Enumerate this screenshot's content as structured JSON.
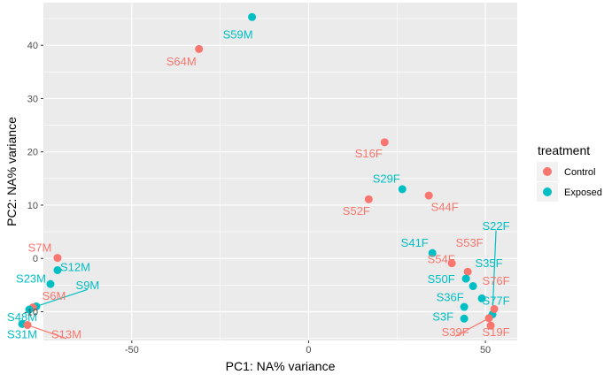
{
  "colors": {
    "Control": "#F8766D",
    "Exposed": "#00BFC4",
    "panel": "#EBEBEB",
    "grid": "#FFFFFF"
  },
  "chart_data": {
    "type": "scatter",
    "xlabel": "PC1: NA% variance",
    "ylabel": "PC2: NA% variance",
    "xlim": [
      -75,
      59
    ],
    "ylim": [
      -15.4,
      48
    ],
    "xticks": [
      -50,
      0,
      50
    ],
    "yticks": [
      -10,
      0,
      10,
      20,
      30,
      40
    ],
    "grid": true,
    "legend": {
      "title": "treatment",
      "position": "right",
      "entries": [
        "Control",
        "Exposed"
      ]
    },
    "points": [
      {
        "label": "S59M",
        "group": "Exposed",
        "x": -16,
        "y": 45.3,
        "lx": -20,
        "ly": 42.0
      },
      {
        "label": "S64M",
        "group": "Control",
        "x": -31,
        "y": 39.3,
        "lx": -36,
        "ly": 37.0
      },
      {
        "label": "S16F",
        "group": "Control",
        "x": 21.5,
        "y": 21.8,
        "lx": 17,
        "ly": 19.7
      },
      {
        "label": "S29F",
        "group": "Exposed",
        "x": 26.5,
        "y": 13.0,
        "lx": 22,
        "ly": 15.0
      },
      {
        "label": "S44F",
        "group": "Control",
        "x": 34,
        "y": 11.8,
        "lx": 38.5,
        "ly": 9.7
      },
      {
        "label": "S52F",
        "group": "Control",
        "x": 17,
        "y": 11.1,
        "lx": 13.5,
        "ly": 8.9
      },
      {
        "label": "S22F",
        "group": "Exposed",
        "x": 52,
        "y": -10.5,
        "lx": 53,
        "ly": 6.1,
        "seg": true
      },
      {
        "label": "S41F",
        "group": "Exposed",
        "x": 35,
        "y": 1.0,
        "lx": 30,
        "ly": 2.9
      },
      {
        "label": "S53F",
        "group": "Control",
        "x": 45,
        "y": -2.5,
        "lx": 45.5,
        "ly": 2.9
      },
      {
        "label": "S54F",
        "group": "Control",
        "x": 40.5,
        "y": -0.9,
        "lx": 37.5,
        "ly": -0.1
      },
      {
        "label": "S35F",
        "group": "Exposed",
        "x": 46.5,
        "y": -5.2,
        "lx": 51,
        "ly": -0.9
      },
      {
        "label": "S50F",
        "group": "Exposed",
        "x": 44.5,
        "y": -3.8,
        "lx": 37.5,
        "ly": -3.9
      },
      {
        "label": "S76F",
        "group": "Control",
        "x": 52.5,
        "y": -9.5,
        "lx": 53,
        "ly": -4.2
      },
      {
        "label": "S36F",
        "group": "Exposed",
        "x": 44,
        "y": -9.1,
        "lx": 40,
        "ly": -7.3
      },
      {
        "label": "S77F",
        "group": "Exposed",
        "x": 49,
        "y": -7.5,
        "lx": 53,
        "ly": -7.9
      },
      {
        "label": "S3F",
        "group": "Exposed",
        "x": 44,
        "y": -11.3,
        "lx": 38,
        "ly": -10.9
      },
      {
        "label": "S39F",
        "group": "Control",
        "x": 51,
        "y": -11.2,
        "lx": 41.5,
        "ly": -13.8,
        "seg": true
      },
      {
        "label": "S19F",
        "group": "Control",
        "x": 51.5,
        "y": -12.6,
        "lx": 53,
        "ly": -13.8
      },
      {
        "label": "S7M",
        "group": "Control",
        "x": -71,
        "y": 0.1,
        "lx": -76,
        "ly": 2.0
      },
      {
        "label": "S12M",
        "group": "Exposed",
        "x": -71,
        "y": -2.2,
        "lx": -66,
        "ly": -1.6
      },
      {
        "label": "S23M",
        "group": "Exposed",
        "x": -73,
        "y": -4.8,
        "lx": -78.5,
        "ly": -3.8
      },
      {
        "label": "S9M",
        "group": "Exposed",
        "x": -77,
        "y": -9.0,
        "lx": -62.5,
        "ly": -5.0,
        "seg": true
      },
      {
        "label": "S6M",
        "group": "Control",
        "x": -78,
        "y": -9.2,
        "lx": -72,
        "ly": -7.0
      },
      {
        "label": "S48M",
        "group": "Exposed",
        "x": -79,
        "y": -9.6,
        "lx": -81,
        "ly": -11.0
      },
      {
        "label": "S31M",
        "group": "Exposed",
        "x": -81,
        "y": -12.3,
        "lx": -81,
        "ly": -14.2
      },
      {
        "label": "S13M",
        "group": "Control",
        "x": -79.5,
        "y": -12.5,
        "lx": -68.5,
        "ly": -14.2,
        "seg": true
      }
    ]
  }
}
